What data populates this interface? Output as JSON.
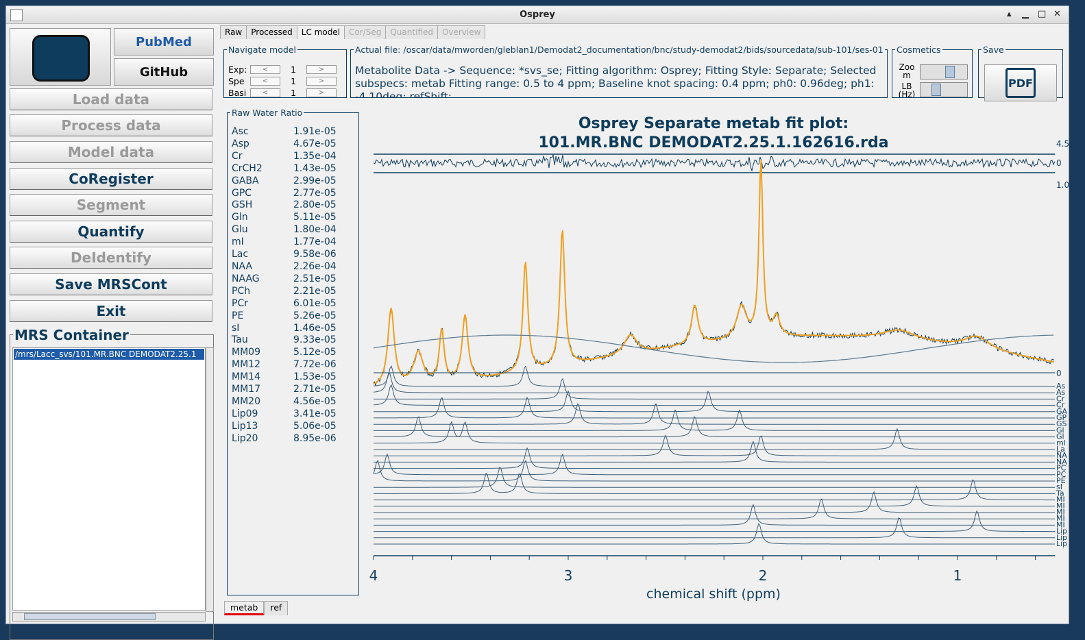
{
  "window": {
    "title": "Osprey"
  },
  "buttons": {
    "pubmed": "PubMed",
    "github": "GitHub",
    "load": "Load data",
    "process": "Process data",
    "model": "Model data",
    "coregister": "CoRegister",
    "segment": "Segment",
    "quantify": "Quantify",
    "deidentify": "DeIdentify",
    "save": "Save MRSCont",
    "exit": "Exit"
  },
  "mrs_container": {
    "label": "MRS Container",
    "selected": "/mrs/Lacc_svs/101.MR.BNC DEMODAT2.25.1"
  },
  "tabs": [
    {
      "label": "Raw"
    },
    {
      "label": "Processed"
    },
    {
      "label": "LC model"
    },
    {
      "label": "Cor/Seg"
    },
    {
      "label": "Quantified"
    },
    {
      "label": "Overview"
    }
  ],
  "navigate": {
    "label": "Navigate model",
    "rows": [
      {
        "name": "Exp:",
        "value": "1"
      },
      {
        "name": "Spe",
        "value": "1"
      },
      {
        "name": "Basi",
        "value": "1"
      }
    ]
  },
  "actual_file": {
    "label": "Actual file: /oscar/data/mworden/gleblan1/Demodat2_documentation/bnc/study-demodat2/bids/sourcedata/sub-101/ses-01",
    "text": "Metabolite Data -> Sequence:  *svs_se; Fitting algorithm: Osprey; Fitting Style: Separate; Selected subspecs: metab Fitting range: 0.5 to 4 ppm; Baseline knot spacing: 0.4 ppm; ph0: 0.96deg; ph1: -4.10deg; refShift:"
  },
  "cosmetics": {
    "label": "Cosmetics",
    "zoom": "Zoo m",
    "lb": "LB (Hz)"
  },
  "save_box": {
    "label": "Save",
    "pdf": "PDF"
  },
  "raw_water": {
    "label": "Raw Water Ratio",
    "rows": [
      [
        "Asc",
        "1.91e-05"
      ],
      [
        "Asp",
        "4.67e-05"
      ],
      [
        "Cr",
        "1.35e-04"
      ],
      [
        "CrCH2",
        "1.43e-05"
      ],
      [
        "GABA",
        "2.99e-05"
      ],
      [
        "GPC",
        "2.77e-05"
      ],
      [
        "GSH",
        "2.80e-05"
      ],
      [
        "Gln",
        "5.11e-05"
      ],
      [
        "Glu",
        "1.80e-04"
      ],
      [
        "mI",
        "1.77e-04"
      ],
      [
        "Lac",
        "9.58e-06"
      ],
      [
        "NAA",
        "2.26e-04"
      ],
      [
        "NAAG",
        "2.51e-05"
      ],
      [
        "PCh",
        "2.21e-05"
      ],
      [
        "PCr",
        "6.01e-05"
      ],
      [
        "PE",
        "5.26e-05"
      ],
      [
        "sI",
        "1.46e-05"
      ],
      [
        "Tau",
        "9.33e-05"
      ],
      [
        "MM09",
        "5.12e-05"
      ],
      [
        "MM12",
        "7.72e-06"
      ],
      [
        "MM14",
        "1.53e-05"
      ],
      [
        "MM17",
        "2.71e-05"
      ],
      [
        "MM20",
        "4.56e-05"
      ],
      [
        "Lip09",
        "3.41e-05"
      ],
      [
        "Lip13",
        "5.06e-05"
      ],
      [
        "Lip20",
        "8.95e-06"
      ]
    ]
  },
  "plot": {
    "title1": "Osprey Separate metab fit plot:",
    "title2": "101.MR.BNC DEMODAT2.25.1.162616.rda",
    "xlabel": "chemical shift (ppm)",
    "xticks": [
      "4",
      "3",
      "2",
      "1"
    ],
    "right_labels": [
      "4.5",
      "0",
      "1.0",
      "0"
    ],
    "basis_labels": [
      "As",
      "As",
      "Cr",
      "Cr",
      "GA",
      "GP",
      "GS",
      "Gl",
      "Gl",
      "ml",
      "La",
      "NA",
      "NA",
      "PC",
      "PC",
      "PE",
      "sI",
      "Ta",
      "MI",
      "MI",
      "MI",
      "MI",
      "MI",
      "Lip",
      "Lip",
      "Lip"
    ]
  },
  "bottom_tabs": [
    {
      "label": "metab"
    },
    {
      "label": "ref"
    }
  ],
  "colors": {
    "fit": "#f0a020",
    "data": "#0e3c5c"
  }
}
